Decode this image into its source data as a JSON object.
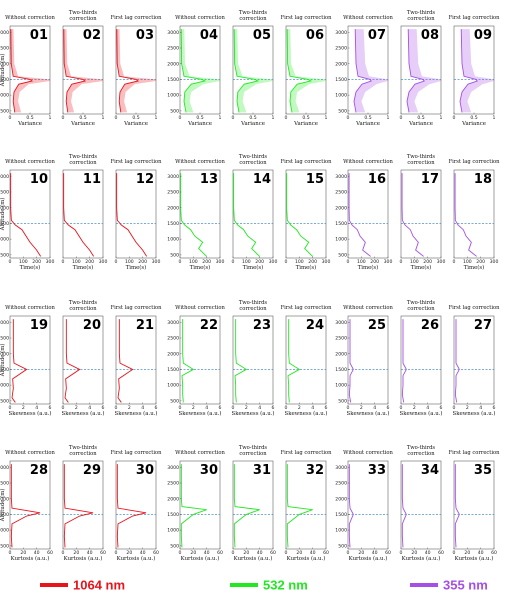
{
  "chart_data": {
    "type": "line",
    "rows": [
      {
        "metric": "variance",
        "xlabel": "Variance",
        "xticks": [
          "0",
          "0.5",
          "1"
        ],
        "xmax": 1
      },
      {
        "metric": "time",
        "xlabel": "Time(s)",
        "xticks": [
          "0",
          "100",
          "200",
          "300"
        ],
        "xmax": 300
      },
      {
        "metric": "skewness",
        "xlabel": "Skewness (a.u.)",
        "xticks": [
          "0",
          "2",
          "4",
          "6"
        ],
        "xmax": 6
      },
      {
        "metric": "kurtosis",
        "xlabel": "Kurtosis (a.u.)",
        "xticks": [
          "0",
          "20",
          "40",
          "60"
        ],
        "xmax": 60
      }
    ],
    "columns": [
      {
        "title": [
          "Without correction"
        ],
        "wavelength": "1064 nm"
      },
      {
        "title": [
          "Two-thirds",
          "correction"
        ],
        "wavelength": "1064 nm"
      },
      {
        "title": [
          "First lag correction"
        ],
        "wavelength": "1064 nm"
      },
      {
        "title": [
          "Without correction"
        ],
        "wavelength": "532 nm"
      },
      {
        "title": [
          "Two-thirds",
          "correction"
        ],
        "wavelength": "532 nm"
      },
      {
        "title": [
          "First lag correction"
        ],
        "wavelength": "532 nm"
      },
      {
        "title": [
          "Without correction"
        ],
        "wavelength": "355 nm"
      },
      {
        "title": [
          "Two-thirds",
          "correction"
        ],
        "wavelength": "355 nm"
      },
      {
        "title": [
          "First lag correction"
        ],
        "wavelength": "355 nm"
      }
    ],
    "panel_numbers": [
      [
        "01",
        "02",
        "03",
        "04",
        "05",
        "06",
        "07",
        "08",
        "09"
      ],
      [
        "10",
        "11",
        "12",
        "13",
        "14",
        "15",
        "16",
        "17",
        "18"
      ],
      [
        "19",
        "20",
        "21",
        "22",
        "23",
        "24",
        "25",
        "26",
        "27"
      ],
      [
        "28",
        "29",
        "30",
        "30",
        "31",
        "32",
        "33",
        "34",
        "35"
      ]
    ],
    "ylabel": "Altitude  (m)",
    "yticks": [
      "500",
      "1000",
      "1500",
      "2000",
      "2500",
      "3000"
    ],
    "ylim": [
      400,
      3200
    ],
    "reference_altitude_m": 1500,
    "series": [
      {
        "name": "1064 nm",
        "color": "#e8141c",
        "profile_variance": [
          [
            450,
            0.12
          ],
          [
            800,
            0.08
          ],
          [
            1100,
            0.1
          ],
          [
            1350,
            0.22
          ],
          [
            1450,
            0.55
          ],
          [
            1500,
            0.5
          ],
          [
            1600,
            0.08
          ],
          [
            2000,
            0.03
          ],
          [
            3100,
            0.02
          ]
        ],
        "profile_time": [
          [
            450,
            230
          ],
          [
            650,
            200
          ],
          [
            900,
            150
          ],
          [
            1100,
            120
          ],
          [
            1300,
            90
          ],
          [
            1450,
            40
          ],
          [
            1600,
            10
          ],
          [
            2000,
            5
          ],
          [
            3100,
            5
          ]
        ],
        "profile_skewness": [
          [
            450,
            0.8
          ],
          [
            600,
            0.3
          ],
          [
            900,
            0.5
          ],
          [
            1200,
            0.4
          ],
          [
            1500,
            2.5
          ],
          [
            1700,
            0.6
          ],
          [
            2000,
            0.5
          ],
          [
            3100,
            0.5
          ]
        ],
        "profile_kurtosis": [
          [
            450,
            3
          ],
          [
            800,
            2
          ],
          [
            1200,
            3
          ],
          [
            1450,
            25
          ],
          [
            1550,
            45
          ],
          [
            1700,
            3
          ],
          [
            2000,
            2
          ],
          [
            3100,
            2
          ]
        ]
      },
      {
        "name": "532 nm",
        "color": "#22e822",
        "profile_variance": [
          [
            450,
            0.15
          ],
          [
            800,
            0.1
          ],
          [
            1100,
            0.12
          ],
          [
            1350,
            0.28
          ],
          [
            1450,
            0.62
          ],
          [
            1500,
            0.55
          ],
          [
            1600,
            0.1
          ],
          [
            2000,
            0.04
          ],
          [
            3100,
            0.03
          ]
        ],
        "profile_time": [
          [
            450,
            200
          ],
          [
            700,
            140
          ],
          [
            900,
            170
          ],
          [
            1100,
            110
          ],
          [
            1300,
            80
          ],
          [
            1450,
            35
          ],
          [
            1600,
            10
          ],
          [
            2000,
            5
          ],
          [
            3100,
            5
          ]
        ],
        "profile_skewness": [
          [
            450,
            0.5
          ],
          [
            700,
            0.4
          ],
          [
            1000,
            0.4
          ],
          [
            1300,
            0.3
          ],
          [
            1500,
            2.0
          ],
          [
            1700,
            0.5
          ],
          [
            2000,
            0.4
          ],
          [
            3100,
            0.4
          ]
        ],
        "profile_kurtosis": [
          [
            450,
            3
          ],
          [
            800,
            2
          ],
          [
            1200,
            2
          ],
          [
            1500,
            20
          ],
          [
            1650,
            40
          ],
          [
            1750,
            3
          ],
          [
            2000,
            2
          ],
          [
            3100,
            2
          ]
        ]
      },
      {
        "name": "355 nm",
        "color": "#a64fe6",
        "profile_variance": [
          [
            450,
            0.2
          ],
          [
            800,
            0.15
          ],
          [
            1100,
            0.2
          ],
          [
            1350,
            0.35
          ],
          [
            1450,
            0.58
          ],
          [
            1500,
            0.55
          ],
          [
            1600,
            0.25
          ],
          [
            2000,
            0.2
          ],
          [
            3100,
            0.18
          ]
        ],
        "profile_time": [
          [
            450,
            170
          ],
          [
            650,
            110
          ],
          [
            900,
            130
          ],
          [
            1100,
            90
          ],
          [
            1300,
            70
          ],
          [
            1450,
            30
          ],
          [
            1600,
            10
          ],
          [
            2000,
            8
          ],
          [
            3100,
            8
          ]
        ],
        "profile_skewness": [
          [
            450,
            0.4
          ],
          [
            700,
            0.2
          ],
          [
            1000,
            0.3
          ],
          [
            1300,
            0.3
          ],
          [
            1500,
            0.8
          ],
          [
            1700,
            0.3
          ],
          [
            2000,
            0.3
          ],
          [
            3100,
            0.3
          ]
        ],
        "profile_kurtosis": [
          [
            450,
            3
          ],
          [
            800,
            2
          ],
          [
            1200,
            2
          ],
          [
            1500,
            8
          ],
          [
            1700,
            3
          ],
          [
            2000,
            2
          ],
          [
            3100,
            2
          ]
        ]
      }
    ],
    "legend": [
      {
        "label": "1064 nm",
        "color": "#e8141c"
      },
      {
        "label": "532 nm",
        "color": "#22e822"
      },
      {
        "label": "355 nm",
        "color": "#a64fe6"
      }
    ],
    "legend_placement": "bottom"
  }
}
